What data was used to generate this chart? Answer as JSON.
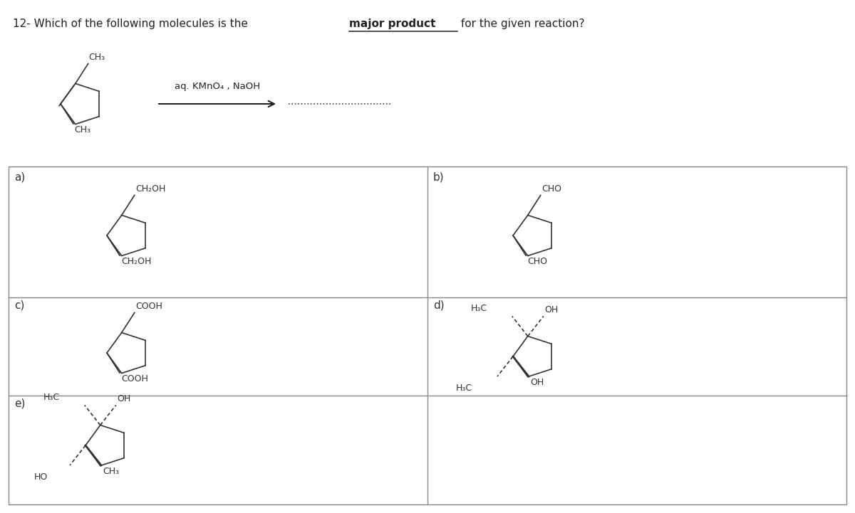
{
  "background": "#ffffff",
  "text_color": "#333333",
  "grid_color": "#888888",
  "title_prefix": "12- Which of the following molecules is the ",
  "title_bold": "major product",
  "title_suffix": " for the given reaction?",
  "reaction_reagent": "aq. KMnO₄ , NaOH",
  "option_labels": [
    "a)",
    "b)",
    "c)",
    "d)",
    "e)"
  ]
}
